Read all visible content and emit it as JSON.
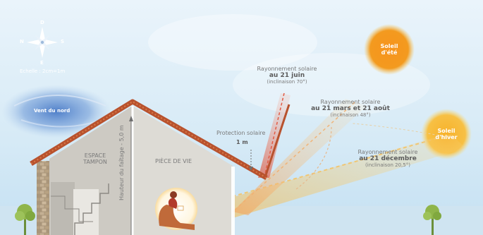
{
  "compass": {
    "north": "D",
    "west": "N",
    "east": "S",
    "south": "E",
    "scale": "Echelle : 2cm=1m"
  },
  "wind": {
    "label": "Vent du nord"
  },
  "house": {
    "buffer_zone_line1": "ESPACE",
    "buffer_zone_line2": "TAMPON",
    "living_room": "PIÈCE DE VIE",
    "ridge_height": "Hauteur du faîtage - 5,0 m"
  },
  "protection": {
    "label": "Protection solaire",
    "value": "1 m"
  },
  "rays": [
    {
      "line1": "Rayonnement solaire",
      "line2": "au 21 juin",
      "line3": "(inclinaison 70°)",
      "angle_deg": 70
    },
    {
      "line1": "Rayonnement solaire",
      "line2": "au 21 mars et 21 août",
      "line3": "(inclinaison 48°)",
      "angle_deg": 48
    },
    {
      "line1": "Rayonnement solaire",
      "line2": "au 21 décembre",
      "line3": "(inclinaison 20,5°)",
      "angle_deg": 20.5
    }
  ],
  "suns": {
    "summer_line1": "Soleil",
    "summer_line2": "d'été",
    "winter_line1": "Soleil",
    "winter_line2": "d'hiver"
  },
  "colors": {
    "sky": "#cde6f4",
    "wall": "#d8d6d0",
    "roof": "#b8522e",
    "sun": "#f6a21c",
    "june_ray": "#e06050",
    "ray": "#f0c060"
  }
}
